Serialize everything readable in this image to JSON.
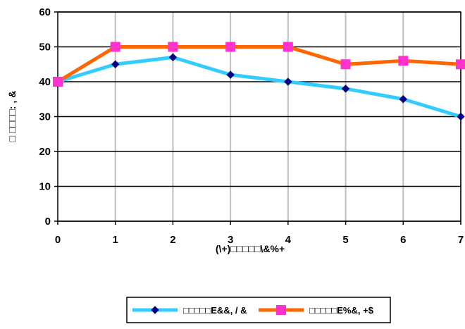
{
  "chart_data": {
    "type": "line",
    "x": [
      0,
      1,
      2,
      3,
      4,
      5,
      6,
      7
    ],
    "xlim": [
      0,
      7
    ],
    "ylim": [
      0,
      60
    ],
    "yticks": [
      0,
      10,
      20,
      30,
      40,
      50,
      60
    ],
    "xticks": [
      0,
      1,
      2,
      3,
      4,
      5,
      6,
      7
    ],
    "xlabel": "(\\+)□□□□□\\&%+",
    "ylabel": "□ □□□□: , &",
    "grid": true,
    "legend_position": "bottom",
    "series": [
      {
        "name": "□□□□□E&&, / &",
        "values": [
          40,
          45,
          47,
          42,
          40,
          38,
          35,
          30
        ],
        "line_color": "#33CCFF",
        "marker": "diamond",
        "marker_color": "#000080"
      },
      {
        "name": "□□□□□E%&, +$",
        "values": [
          40,
          50,
          50,
          50,
          50,
          45,
          46,
          45
        ],
        "line_color": "#FF6600",
        "marker": "square",
        "marker_color": "#FF33CC"
      }
    ]
  }
}
